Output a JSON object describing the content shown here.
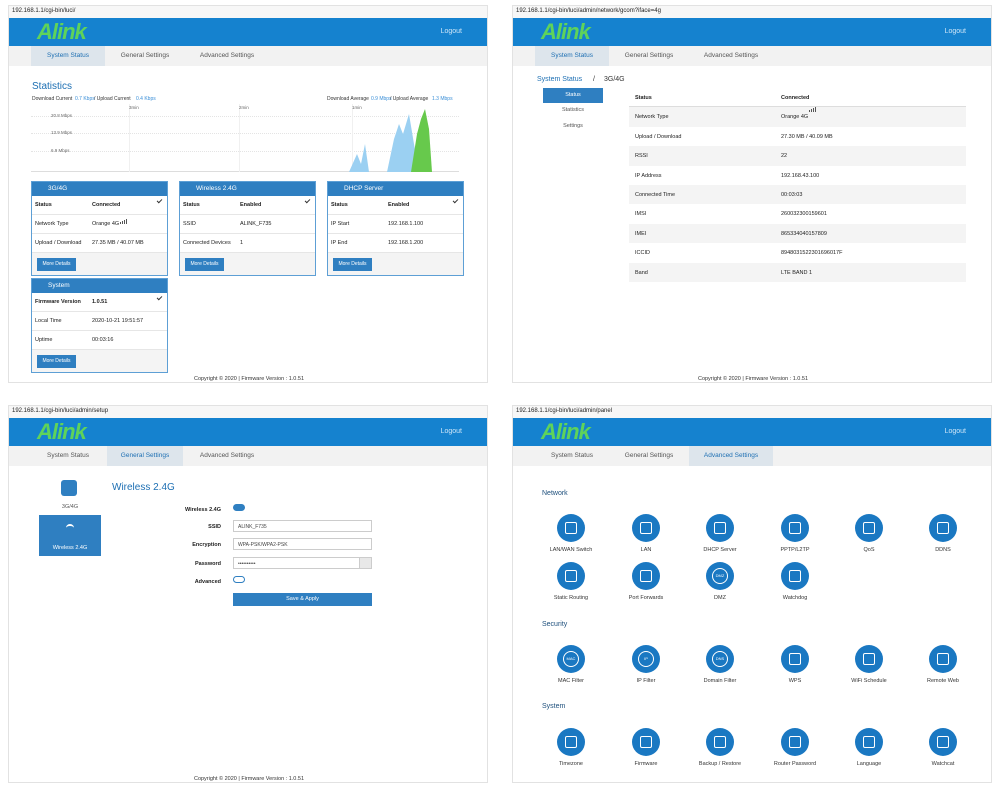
{
  "nav": {
    "logo": "Alink",
    "logout": "Logout",
    "tabs": [
      "System Status",
      "General Settings",
      "Advanced Settings"
    ],
    "footer": "Copyright © 2020  |  Firmware Version : 1.0.51"
  },
  "status_page": {
    "url": "192.168.1.1/cgi-bin/luci/",
    "stats": {
      "title": "Statistics",
      "download_current_label": "Download Current",
      "download_current": "0.7 Kbps",
      "upload_current_label": "/ Upload Current",
      "upload_current": "0.4 Kbps",
      "download_average_label": "Download Average",
      "download_average": "0.9 Mbps",
      "upload_average_label": "/ Upload Average",
      "upload_average": "1.3 Mbps",
      "y_labels": [
        "20.8 Mbps",
        "13.9 Mbps",
        "6.9 Mbps"
      ],
      "time_labels": [
        "3min",
        "2min",
        "1min"
      ]
    },
    "cards": [
      {
        "title": "3G/4G",
        "rows": [
          [
            "Status",
            "Connected"
          ],
          [
            "Network Type",
            "Orange 4G"
          ],
          [
            "Upload / Download",
            "27.35 MB / 40.07 MB"
          ]
        ],
        "button": "More Details"
      },
      {
        "title": "Wireless 2.4G",
        "rows": [
          [
            "Status",
            "Enabled"
          ],
          [
            "SSID",
            "ALINK_F735"
          ],
          [
            "Connected Devices",
            "1"
          ]
        ],
        "button": "More Details"
      },
      {
        "title": "DHCP Server",
        "rows": [
          [
            "Status",
            "Enabled"
          ],
          [
            "IP Start",
            "192.168.1.100"
          ],
          [
            "IP End",
            "192.168.1.200"
          ]
        ],
        "button": "More Details"
      },
      {
        "title": "System",
        "rows": [
          [
            "Firmware Version",
            "1.0.51"
          ],
          [
            "Local Time",
            "2020-10-21 19:51:57"
          ],
          [
            "Uptime",
            "00:03:16"
          ]
        ],
        "button": "More Details"
      }
    ]
  },
  "mobile_page": {
    "url": "192.168.1.1/cgi-bin/luci/admin/network/gcom?iface=4g",
    "breadcrumb": [
      "System Status",
      "/",
      "3G/4G"
    ],
    "sidebar": [
      "Status",
      "Statistics",
      "Settings"
    ],
    "rows": [
      [
        "Status",
        "Connected"
      ],
      [
        "Network Type",
        "Orange 4G"
      ],
      [
        "Upload / Download",
        "27.30 MB / 40.09 MB"
      ],
      [
        "RSSI",
        "22"
      ],
      [
        "IP Address",
        "192.168.43.100"
      ],
      [
        "Connected Time",
        "00:03:03"
      ],
      [
        "IMSI",
        "260032300159601"
      ],
      [
        "IMEI",
        "865334040157809"
      ],
      [
        "ICCID",
        "8948031522301696017F"
      ],
      [
        "Band",
        "LTE BAND 1"
      ]
    ]
  },
  "wireless_page": {
    "url": "192.168.1.1/cgi-bin/luci/admin/setup",
    "sidebar": [
      "3G/4G",
      "Wireless 2.4G"
    ],
    "title": "Wireless 2.4G",
    "fields": {
      "wireless_label": "Wireless 2.4G",
      "ssid_label": "SSID",
      "ssid": "ALINK_F735",
      "encryption_label": "Encryption",
      "encryption": "WPA-PSK/WPA2-PSK",
      "password_label": "Password",
      "password": "••••••••••",
      "advanced_label": "Advanced"
    },
    "button": "Save & Apply"
  },
  "advanced_page": {
    "url": "192.168.1.1/cgi-bin/luci/admin/panel",
    "sections": [
      {
        "title": "Network",
        "items": [
          {
            "label": "LAN/WAN Switch"
          },
          {
            "label": "LAN"
          },
          {
            "label": "DHCP Server"
          },
          {
            "label": "PPTP/L2TP"
          },
          {
            "label": "QoS"
          },
          {
            "label": "DDNS"
          },
          {
            "label": "Static Routing"
          },
          {
            "label": "Port Forwards"
          },
          {
            "label": "DMZ",
            "icon_text": "DMZ"
          },
          {
            "label": "Watchdog"
          }
        ]
      },
      {
        "title": "Security",
        "items": [
          {
            "label": "MAC Filter",
            "icon_text": "MAC"
          },
          {
            "label": "IP Filter",
            "icon_text": "IP"
          },
          {
            "label": "Domain Filter",
            "icon_text": "DNS"
          },
          {
            "label": "WPS"
          },
          {
            "label": "WiFi Schedule"
          },
          {
            "label": "Remote Web"
          }
        ]
      },
      {
        "title": "System",
        "items": [
          {
            "label": "Timezone"
          },
          {
            "label": "Firmware"
          },
          {
            "label": "Backup / Restore"
          },
          {
            "label": "Router Password"
          },
          {
            "label": "Language"
          },
          {
            "label": "Watchcat"
          }
        ]
      }
    ]
  }
}
